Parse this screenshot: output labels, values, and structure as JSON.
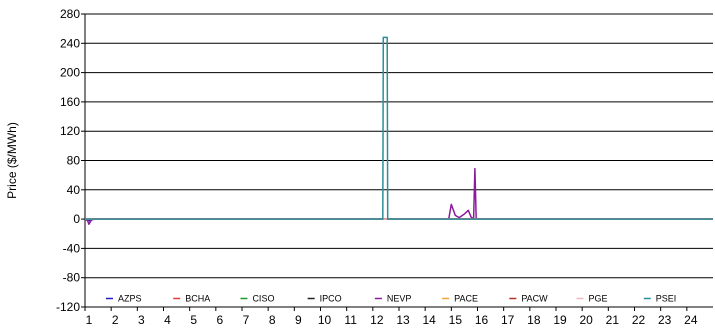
{
  "chart_data": {
    "type": "line",
    "ylabel": "Price ($/MWh)",
    "xlabel": "",
    "ylim": [
      -120,
      280
    ],
    "xlim": [
      1,
      25
    ],
    "y_ticks": [
      -120,
      -80,
      -40,
      0,
      40,
      80,
      120,
      160,
      200,
      240,
      280
    ],
    "x_ticks": [
      1,
      2,
      3,
      4,
      5,
      6,
      7,
      8,
      9,
      10,
      11,
      12,
      13,
      14,
      15,
      16,
      17,
      18,
      19,
      20,
      21,
      22,
      23,
      24
    ],
    "grid": "horizontal",
    "legend_position": "bottom",
    "series": [
      {
        "name": "AZPS",
        "color": "#1f1fcc",
        "points": [
          [
            1.0,
            0
          ],
          [
            1.1,
            0
          ],
          [
            1.2,
            -3
          ],
          [
            1.3,
            0
          ],
          [
            25.0,
            0
          ]
        ]
      },
      {
        "name": "BCHA",
        "color": "#e23b3b",
        "points": [
          [
            1.0,
            0
          ],
          [
            25.0,
            0
          ]
        ]
      },
      {
        "name": "CISO",
        "color": "#1e9a2a",
        "points": [
          [
            1.0,
            0
          ],
          [
            25.0,
            0
          ]
        ]
      },
      {
        "name": "IPCO",
        "color": "#222222",
        "points": [
          [
            1.0,
            0
          ],
          [
            12.3,
            0
          ],
          [
            12.85,
            0
          ],
          [
            13.15,
            0
          ],
          [
            13.4,
            0
          ],
          [
            13.6,
            0
          ],
          [
            14.0,
            0
          ],
          [
            14.4,
            0
          ],
          [
            14.6,
            0
          ],
          [
            25.0,
            0
          ]
        ]
      },
      {
        "name": "NEVP",
        "color": "#8b1a9c",
        "points": [
          [
            1.0,
            0
          ],
          [
            1.1,
            -2
          ],
          [
            1.15,
            -7
          ],
          [
            1.25,
            -1
          ],
          [
            1.4,
            0
          ],
          [
            14.9,
            0
          ],
          [
            15.0,
            20
          ],
          [
            15.15,
            5
          ],
          [
            15.3,
            2
          ],
          [
            15.5,
            7
          ],
          [
            15.65,
            12
          ],
          [
            15.75,
            3
          ],
          [
            15.85,
            0
          ],
          [
            15.9,
            69
          ],
          [
            15.95,
            0
          ],
          [
            25.0,
            0
          ]
        ]
      },
      {
        "name": "PACE",
        "color": "#f0a43a",
        "points": [
          [
            1.0,
            0
          ],
          [
            25.0,
            0
          ]
        ]
      },
      {
        "name": "PACW",
        "color": "#b03030",
        "points": [
          [
            1.0,
            0
          ],
          [
            25.0,
            0
          ]
        ]
      },
      {
        "name": "PGE",
        "color": "#f2b8c0",
        "points": [
          [
            1.0,
            0
          ],
          [
            25.0,
            0
          ]
        ]
      },
      {
        "name": "PSEI",
        "color": "#2b8f9a",
        "points": [
          [
            1.0,
            0
          ],
          [
            12.38,
            0
          ],
          [
            12.4,
            248
          ],
          [
            12.55,
            248
          ],
          [
            12.57,
            0
          ],
          [
            25.0,
            0
          ]
        ]
      }
    ]
  }
}
